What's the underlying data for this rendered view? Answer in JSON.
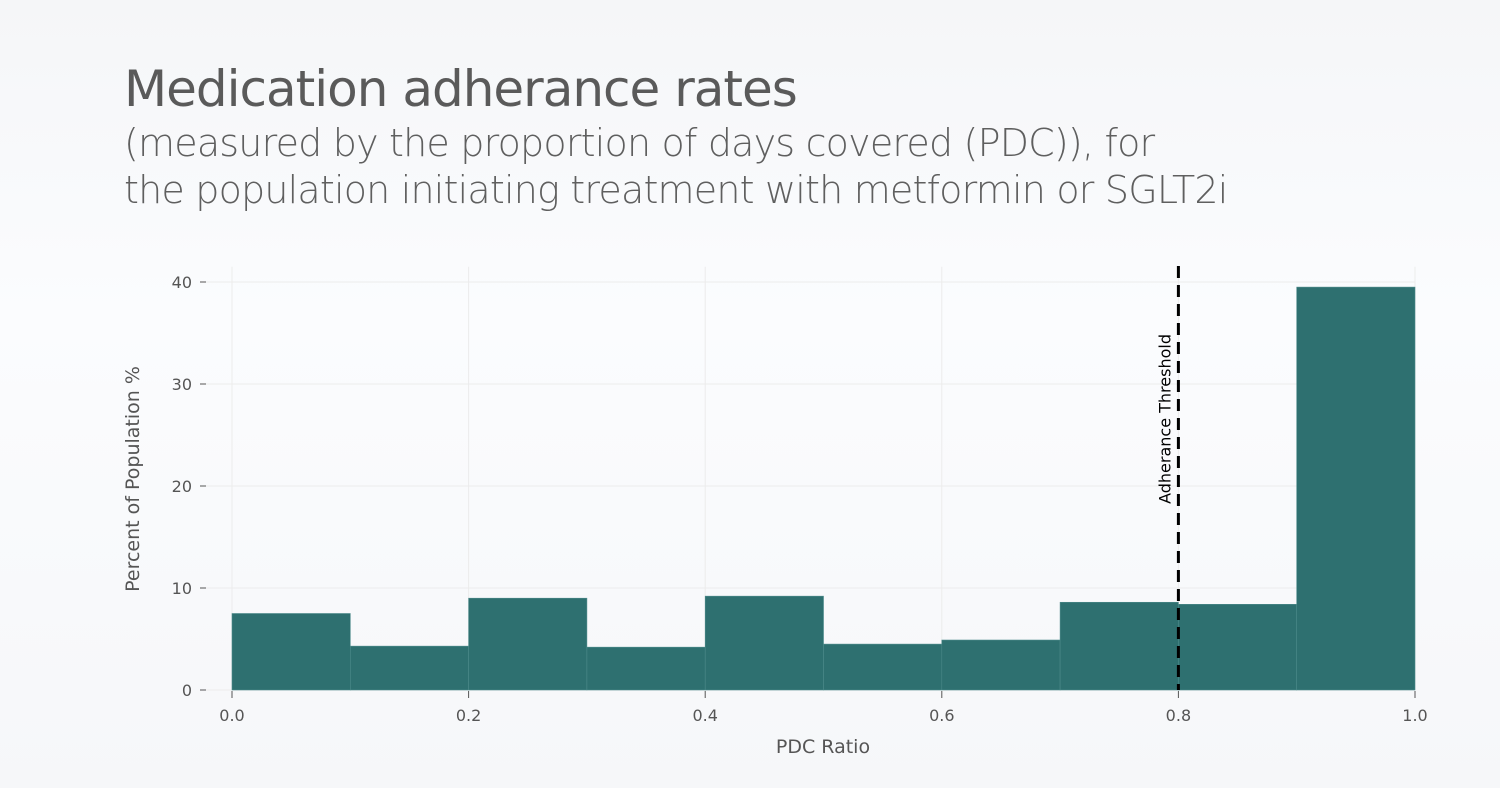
{
  "chart_data": {
    "type": "bar",
    "title": "Medication adherance rates",
    "subtitle_lines": [
      "(measured by the proportion of days covered (PDC)), for",
      "the population initiating treatment with metformin or SGLT2i"
    ],
    "xlabel": "PDC Ratio",
    "ylabel": "Percent of Population %",
    "bin_edges": [
      0.0,
      0.1,
      0.2,
      0.3,
      0.4,
      0.5,
      0.6,
      0.7,
      0.8,
      0.9,
      1.0
    ],
    "values": [
      7.5,
      4.3,
      9.0,
      4.2,
      9.2,
      4.5,
      4.9,
      8.6,
      8.4,
      39.5
    ],
    "xlim": [
      0,
      1
    ],
    "ylim": [
      0,
      41.5
    ],
    "xticks": [
      "0.0",
      "0.2",
      "0.4",
      "0.6",
      "0.8",
      "1.0"
    ],
    "yticks": [
      "0",
      "10",
      "20",
      "30",
      "40"
    ],
    "grid": true,
    "bar_color": "#2e7070",
    "threshold": {
      "x": 0.8,
      "label": "Adherance Threshold",
      "style": "dashed",
      "color": "#000000"
    }
  }
}
